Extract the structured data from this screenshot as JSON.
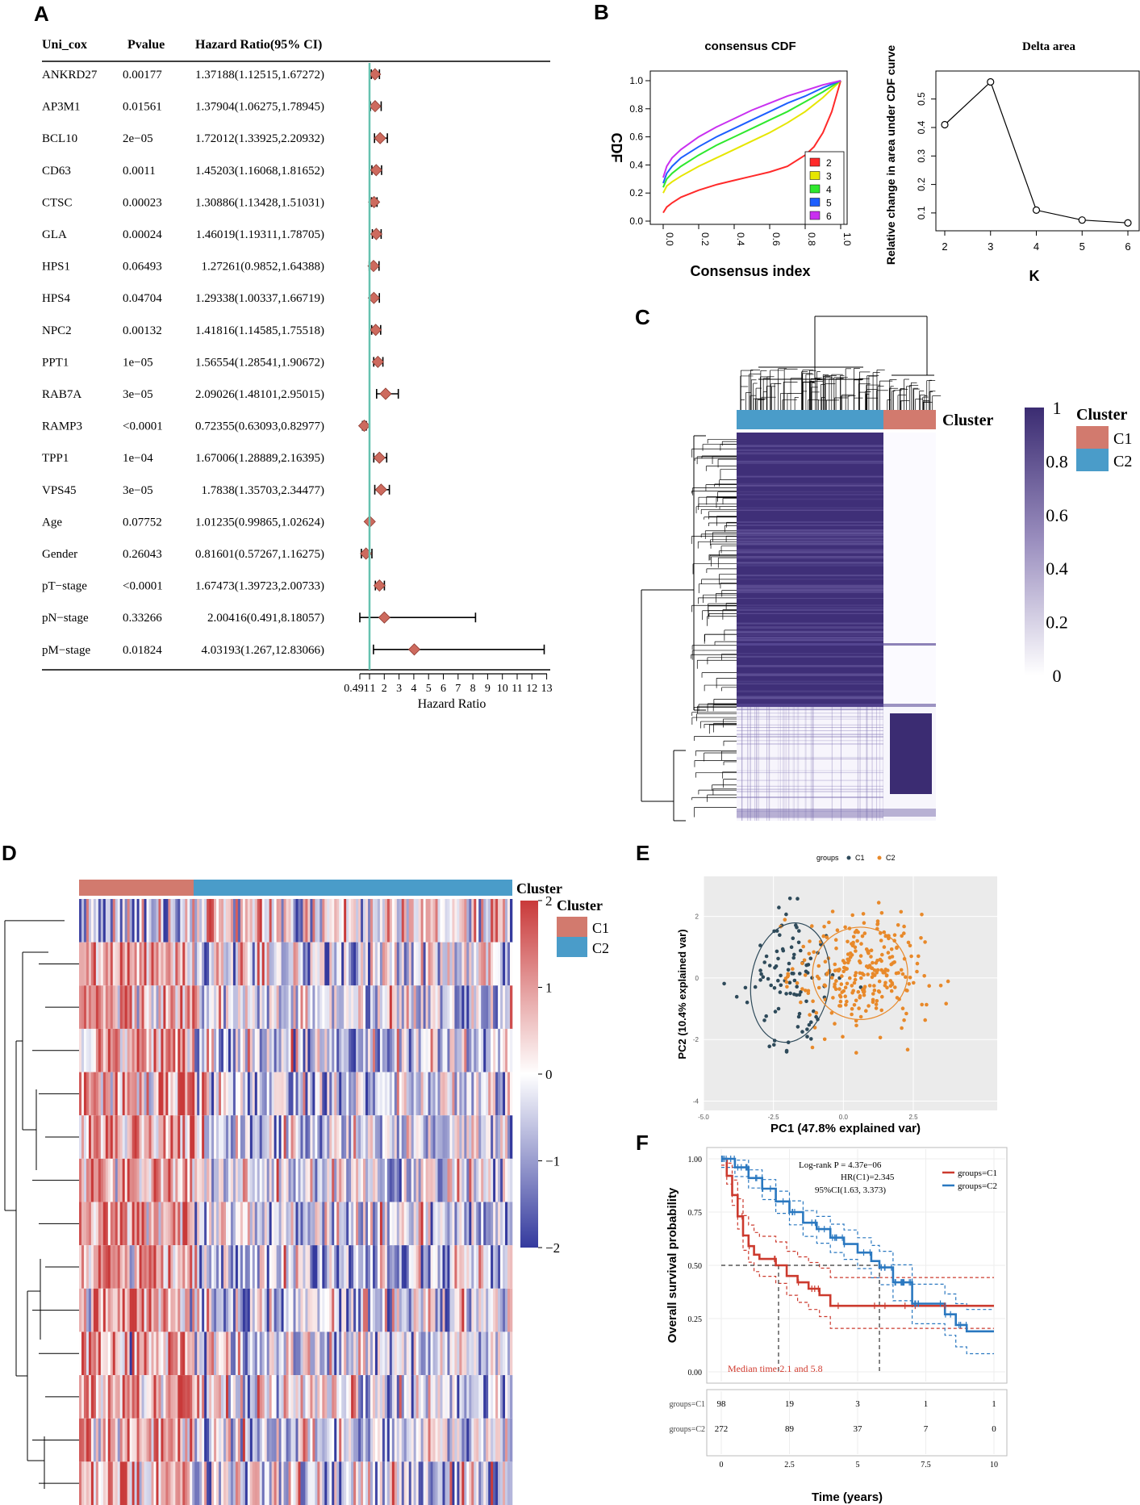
{
  "panels": {
    "A": "A",
    "B": "B",
    "C": "C",
    "D": "D",
    "E": "E",
    "F": "F"
  },
  "chart_data": [
    {
      "id": "A",
      "type": "forest",
      "columns": [
        "Uni_cox",
        "Pvalue",
        "Hazard Ratio(95% CI)"
      ],
      "rows": [
        {
          "name": "ANKRD27",
          "p": "0.00177",
          "hrtext": "1.37188(1.12515,1.67272)",
          "hr": 1.37188,
          "lo": 1.12515,
          "hi": 1.67272
        },
        {
          "name": "AP3M1",
          "p": "0.01561",
          "hrtext": "1.37904(1.06275,1.78945)",
          "hr": 1.37904,
          "lo": 1.06275,
          "hi": 1.78945
        },
        {
          "name": "BCL10",
          "p": "2e−05",
          "hrtext": "1.72012(1.33925,2.20932)",
          "hr": 1.72012,
          "lo": 1.33925,
          "hi": 2.20932
        },
        {
          "name": "CD63",
          "p": "0.0011",
          "hrtext": "1.45203(1.16068,1.81652)",
          "hr": 1.45203,
          "lo": 1.16068,
          "hi": 1.81652
        },
        {
          "name": "CTSC",
          "p": "0.00023",
          "hrtext": "1.30886(1.13428,1.51031)",
          "hr": 1.30886,
          "lo": 1.13428,
          "hi": 1.51031
        },
        {
          "name": "GLA",
          "p": "0.00024",
          "hrtext": "1.46019(1.19311,1.78705)",
          "hr": 1.46019,
          "lo": 1.19311,
          "hi": 1.78705
        },
        {
          "name": "HPS1",
          "p": "0.06493",
          "hrtext": "1.27261(0.9852,1.64388)",
          "hr": 1.27261,
          "lo": 0.9852,
          "hi": 1.64388
        },
        {
          "name": "HPS4",
          "p": "0.04704",
          "hrtext": "1.29338(1.00337,1.66719)",
          "hr": 1.29338,
          "lo": 1.00337,
          "hi": 1.66719
        },
        {
          "name": "NPC2",
          "p": "0.00132",
          "hrtext": "1.41816(1.14585,1.75518)",
          "hr": 1.41816,
          "lo": 1.14585,
          "hi": 1.75518
        },
        {
          "name": "PPT1",
          "p": "1e−05",
          "hrtext": "1.56554(1.28541,1.90672)",
          "hr": 1.56554,
          "lo": 1.28541,
          "hi": 1.90672
        },
        {
          "name": "RAB7A",
          "p": "3e−05",
          "hrtext": "2.09026(1.48101,2.95015)",
          "hr": 2.09026,
          "lo": 1.48101,
          "hi": 2.95015
        },
        {
          "name": "RAMP3",
          "p": "<0.0001",
          "hrtext": "0.72355(0.63093,0.82977)",
          "hr": 0.72355,
          "lo": 0.63093,
          "hi": 0.82977
        },
        {
          "name": "TPP1",
          "p": "1e−04",
          "hrtext": "1.67006(1.28889,2.16395)",
          "hr": 1.67006,
          "lo": 1.28889,
          "hi": 2.16395
        },
        {
          "name": "VPS45",
          "p": "3e−05",
          "hrtext": "1.7838(1.35703,2.34477)",
          "hr": 1.7838,
          "lo": 1.35703,
          "hi": 2.34477
        },
        {
          "name": "Age",
          "p": "0.07752",
          "hrtext": "1.01235(0.99865,1.02624)",
          "hr": 1.01235,
          "lo": 0.99865,
          "hi": 1.02624
        },
        {
          "name": "Gender",
          "p": "0.26043",
          "hrtext": "0.81601(0.57267,1.16275)",
          "hr": 0.81601,
          "lo": 0.57267,
          "hi": 1.16275
        },
        {
          "name": "pT−stage",
          "p": "<0.0001",
          "hrtext": "1.67473(1.39723,2.00733)",
          "hr": 1.67473,
          "lo": 1.39723,
          "hi": 2.00733
        },
        {
          "name": "pN−stage",
          "p": "0.33266",
          "hrtext": "2.00416(0.491,8.18057)",
          "hr": 2.00416,
          "lo": 0.491,
          "hi": 8.18057
        },
        {
          "name": "pM−stage",
          "p": "0.01824",
          "hrtext": "4.03193(1.267,12.83066)",
          "hr": 4.03193,
          "lo": 1.267,
          "hi": 12.83066
        }
      ],
      "xticks": [
        "0.491",
        "1",
        "2",
        "3",
        "4",
        "5",
        "6",
        "7",
        "8",
        "9",
        "10",
        "11",
        "12",
        "13"
      ],
      "xtick_values": [
        0.491,
        1,
        2,
        3,
        4,
        5,
        6,
        7,
        8,
        9,
        10,
        11,
        12,
        13
      ],
      "xlabel": "Hazard Ratio",
      "xlim": [
        0.491,
        13
      ],
      "reference_line": 1
    },
    {
      "id": "B1",
      "type": "line",
      "title": "consensus CDF",
      "xlabel": "Consensus index",
      "ylabel": "CDF",
      "xlim": [
        0,
        1
      ],
      "ylim": [
        0,
        1
      ],
      "xticks": [
        "0.0",
        "0.2",
        "0.4",
        "0.6",
        "0.8",
        "1.0"
      ],
      "yticks": [
        "0.0",
        "0.2",
        "0.4",
        "0.6",
        "0.8",
        "1.0"
      ],
      "legend": [
        "2",
        "3",
        "4",
        "5",
        "6"
      ],
      "series": [
        {
          "name": "2",
          "color": "#ff2a2a",
          "x": [
            0,
            0.02,
            0.05,
            0.1,
            0.2,
            0.3,
            0.4,
            0.5,
            0.6,
            0.7,
            0.8,
            0.85,
            0.9,
            0.95,
            1.0
          ],
          "y": [
            0.06,
            0.1,
            0.13,
            0.17,
            0.22,
            0.26,
            0.29,
            0.32,
            0.35,
            0.39,
            0.47,
            0.53,
            0.63,
            0.78,
            1.0
          ]
        },
        {
          "name": "3",
          "color": "#e6e600",
          "x": [
            0,
            0.02,
            0.05,
            0.1,
            0.2,
            0.3,
            0.4,
            0.5,
            0.6,
            0.7,
            0.8,
            0.9,
            1.0
          ],
          "y": [
            0.2,
            0.25,
            0.28,
            0.32,
            0.39,
            0.45,
            0.51,
            0.57,
            0.63,
            0.7,
            0.78,
            0.88,
            1.0
          ]
        },
        {
          "name": "4",
          "color": "#2ee82e",
          "x": [
            0,
            0.02,
            0.05,
            0.1,
            0.2,
            0.3,
            0.4,
            0.5,
            0.6,
            0.7,
            0.8,
            0.9,
            1.0
          ],
          "y": [
            0.24,
            0.3,
            0.34,
            0.39,
            0.47,
            0.54,
            0.6,
            0.66,
            0.72,
            0.78,
            0.85,
            0.92,
            1.0
          ]
        },
        {
          "name": "5",
          "color": "#1e5fff",
          "x": [
            0,
            0.02,
            0.05,
            0.1,
            0.2,
            0.3,
            0.4,
            0.5,
            0.6,
            0.7,
            0.8,
            0.9,
            1.0
          ],
          "y": [
            0.27,
            0.34,
            0.39,
            0.45,
            0.53,
            0.6,
            0.66,
            0.72,
            0.78,
            0.84,
            0.89,
            0.95,
            1.0
          ]
        },
        {
          "name": "6",
          "color": "#c930f0",
          "x": [
            0,
            0.02,
            0.05,
            0.1,
            0.2,
            0.3,
            0.4,
            0.5,
            0.6,
            0.7,
            0.8,
            0.9,
            1.0
          ],
          "y": [
            0.31,
            0.39,
            0.45,
            0.51,
            0.6,
            0.67,
            0.73,
            0.79,
            0.84,
            0.89,
            0.93,
            0.97,
            1.0
          ]
        }
      ]
    },
    {
      "id": "B2",
      "type": "line",
      "title": "Delta area",
      "xlabel": "K",
      "ylabel": "Relative change in area under CDF curve",
      "xlim": [
        2,
        6
      ],
      "ylim": [
        0.06,
        0.57
      ],
      "xticks": [
        "2",
        "3",
        "4",
        "5",
        "6"
      ],
      "yticks": [
        "0.1",
        "0.2",
        "0.3",
        "0.4",
        "0.5"
      ],
      "x": [
        2,
        3,
        4,
        5,
        6
      ],
      "y": [
        0.41,
        0.56,
        0.11,
        0.075,
        0.065
      ]
    },
    {
      "id": "C",
      "type": "heatmap",
      "annotation_title": "Cluster",
      "legend_title": "Cluster",
      "legend": [
        "C1",
        "C2"
      ],
      "colorbar_ticks": [
        "1",
        "0.8",
        "0.6",
        "0.4",
        "0.2",
        "0"
      ],
      "colorbar_values": [
        1,
        0.8,
        0.6,
        0.4,
        0.2,
        0
      ],
      "colors": {
        "C1": "#d27a6e",
        "C2": "#4a9cc9",
        "high": "#3b2c72"
      }
    },
    {
      "id": "D",
      "type": "heatmap",
      "annotation_title": "Cluster",
      "legend_title": "Cluster",
      "legend": [
        "C1",
        "C2"
      ],
      "colorbar_ticks": [
        "2",
        "1",
        "0",
        "−1",
        "−2"
      ],
      "colorbar_values": [
        2,
        1,
        0,
        -1,
        -2
      ],
      "colors": {
        "C1": "#d27a6e",
        "C2": "#4a9cc9",
        "high": "#c93a3a",
        "low": "#343a9e"
      }
    },
    {
      "id": "E",
      "type": "scatter",
      "legend_title": "groups",
      "legend": [
        "C1",
        "C2"
      ],
      "xlabel": "PC1 (47.8% explained var)",
      "ylabel": "PC2 (10.4% explained var)",
      "xlim": [
        -5,
        5.5
      ],
      "ylim": [
        -4.3,
        3.3
      ],
      "xticks": [
        "-5.0",
        "-2.5",
        "0.0",
        "2.5"
      ],
      "xtick_values": [
        -5,
        -2.5,
        0,
        2.5
      ],
      "yticks": [
        "2",
        "0",
        "-2",
        "-4"
      ],
      "ytick_values": [
        2,
        0,
        -2,
        -4
      ],
      "colors": {
        "C1": "#2e4a5a",
        "C2": "#e8892a"
      },
      "ellipses": [
        {
          "group": "C1",
          "cx": -1.9,
          "cy": -0.15,
          "rx": 1.4,
          "ry": 1.95,
          "rot": 8
        },
        {
          "group": "C2",
          "cx": 0.6,
          "cy": 0.15,
          "rx": 1.7,
          "ry": 1.5,
          "rot": -5
        }
      ]
    },
    {
      "id": "F",
      "type": "line",
      "annotations": [
        "Log-rank P = 4.37e−06",
        "HR(C1)=2.345",
        "95%CI(1.63, 3.373)",
        "Median time:2.1 and 5.8"
      ],
      "legend": [
        "groups=C1",
        "groups=C2"
      ],
      "ylabel": "Overall survival probability",
      "xlabel": "Time (years)",
      "xlim": [
        0,
        10
      ],
      "ylim": [
        0,
        1
      ],
      "xticks": [
        "0",
        "2.5",
        "5",
        "7.5",
        "10"
      ],
      "xtick_values": [
        0,
        2.5,
        5,
        7.5,
        10
      ],
      "yticks": [
        "1.00",
        "0.75",
        "0.50",
        "0.25",
        "0.00"
      ],
      "ytick_values": [
        1,
        0.75,
        0.5,
        0.25,
        0
      ],
      "medians": [
        2.1,
        5.8
      ],
      "series": [
        {
          "name": "groups=C1",
          "color": "#cc3a2e",
          "x": [
            0,
            0.2,
            0.4,
            0.6,
            0.8,
            1.0,
            1.2,
            1.4,
            1.6,
            2.0,
            2.4,
            2.8,
            3.2,
            3.6,
            4.0,
            10.0
          ],
          "y": [
            1.0,
            0.92,
            0.83,
            0.73,
            0.64,
            0.59,
            0.55,
            0.53,
            0.53,
            0.5,
            0.45,
            0.42,
            0.39,
            0.36,
            0.31,
            0.31
          ]
        },
        {
          "name": "groups=C2",
          "color": "#2a78c0",
          "x": [
            0,
            0.5,
            1.0,
            1.5,
            2.0,
            2.5,
            3.0,
            3.5,
            4.0,
            4.5,
            5.0,
            5.5,
            5.8,
            6.3,
            7.0,
            7.5,
            8.2,
            8.6,
            9.0,
            9.3,
            10.0
          ],
          "y": [
            1.0,
            0.96,
            0.91,
            0.86,
            0.8,
            0.75,
            0.7,
            0.67,
            0.63,
            0.6,
            0.56,
            0.52,
            0.49,
            0.42,
            0.32,
            0.32,
            0.27,
            0.22,
            0.19,
            0.19,
            0.19
          ]
        }
      ],
      "risk_table": {
        "rows": [
          "groups=C1",
          "groups=C2"
        ],
        "times": [
          0,
          2.5,
          5,
          7.5,
          10
        ],
        "values": [
          [
            "98",
            "19",
            "3",
            "1",
            "1"
          ],
          [
            "272",
            "89",
            "37",
            "7",
            "0"
          ]
        ]
      }
    }
  ]
}
